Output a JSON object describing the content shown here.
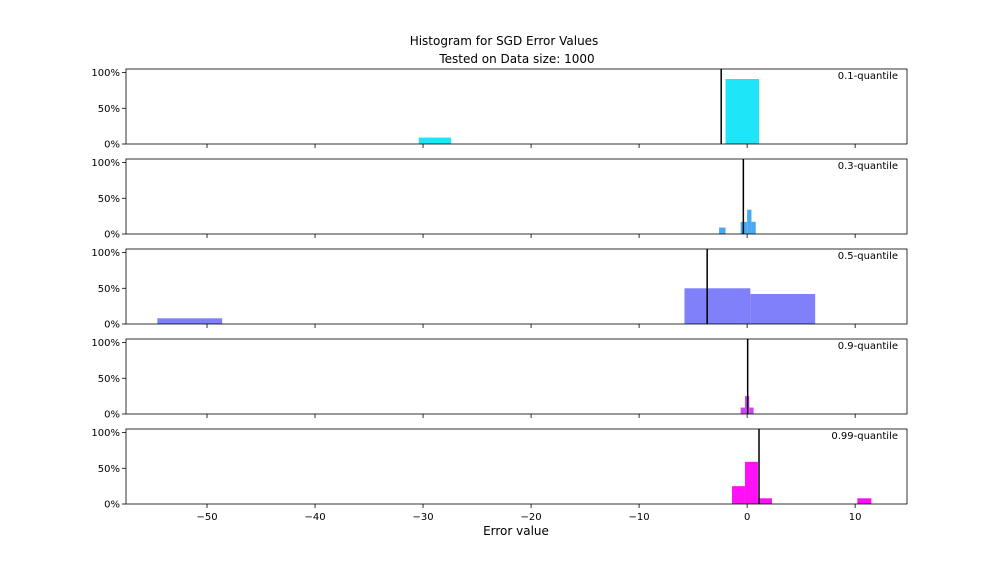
{
  "chart": {
    "title": "Histogram for SGD Error Values",
    "subtitle": "Tested on Data size: 1000",
    "xlabel": "Error value"
  },
  "chart_data": {
    "type": "bar",
    "chart_kind": "stacked histogram panels, shared x axis",
    "title": "Histogram for SGD Error Values",
    "subtitle": "Tested on Data size: 1000",
    "xlabel": "Error value",
    "xlim": [
      -57.5,
      14.8
    ],
    "ylim": [
      0,
      1.05
    ],
    "x_ticks": [
      -50,
      -40,
      -30,
      -20,
      -10,
      0,
      10
    ],
    "x_tick_labels": [
      "−50",
      "−40",
      "−30",
      "−20",
      "−10",
      "0",
      "10"
    ],
    "y_ticks": [
      0,
      0.5,
      1
    ],
    "y_tick_labels": [
      "0%",
      "50%",
      "100%"
    ],
    "grid": false,
    "panels": [
      {
        "label": "0.1-quantile",
        "color": "#1ee6f8",
        "bins": [
          {
            "x0": -30.4,
            "x1": -27.4,
            "value": 0.09
          },
          {
            "x0": -2.0,
            "x1": 1.1,
            "value": 0.91
          }
        ],
        "vline": -2.4
      },
      {
        "label": "0.3-quantile",
        "color": "#4aaaf0",
        "bins": [
          {
            "x0": -2.6,
            "x1": -2.0,
            "value": 0.09
          },
          {
            "x0": -0.6,
            "x1": 0.0,
            "value": 0.17
          },
          {
            "x0": 0.0,
            "x1": 0.4,
            "value": 0.34
          },
          {
            "x0": 0.4,
            "x1": 0.8,
            "value": 0.17
          }
        ],
        "vline": -0.35
      },
      {
        "label": "0.5-quantile",
        "color": "#8080fa",
        "bins": [
          {
            "x0": -54.6,
            "x1": -48.6,
            "value": 0.08
          },
          {
            "x0": -5.8,
            "x1": 0.3,
            "value": 0.5
          },
          {
            "x0": 0.3,
            "x1": 6.3,
            "value": 0.42
          }
        ],
        "vline": -3.7
      },
      {
        "label": "0.9-quantile",
        "color": "#cc44f4",
        "bins": [
          {
            "x0": -0.6,
            "x1": -0.2,
            "value": 0.09
          },
          {
            "x0": -0.2,
            "x1": 0.2,
            "value": 0.25
          },
          {
            "x0": 0.2,
            "x1": 0.6,
            "value": 0.09
          }
        ],
        "vline": 0.05
      },
      {
        "label": "0.99-quantile",
        "color": "#ff11f8",
        "bins": [
          {
            "x0": -1.4,
            "x1": -0.2,
            "value": 0.25
          },
          {
            "x0": -0.2,
            "x1": 1.0,
            "value": 0.59
          },
          {
            "x0": 1.0,
            "x1": 2.3,
            "value": 0.08
          },
          {
            "x0": 10.2,
            "x1": 11.5,
            "value": 0.08
          }
        ],
        "vline": 1.1
      }
    ]
  }
}
